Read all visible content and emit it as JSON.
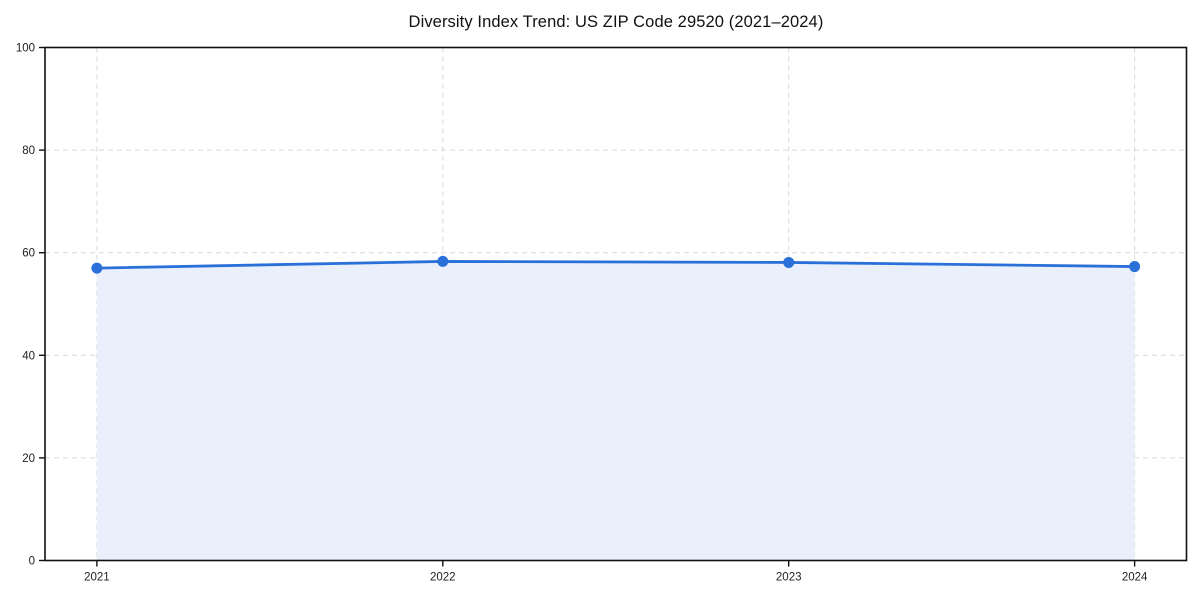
{
  "chart_data": {
    "type": "area",
    "title": "Diversity Index Trend: US ZIP Code 29520 (2021–2024)",
    "x": [
      2021,
      2022,
      2023,
      2024
    ],
    "xticklabels": [
      "2021",
      "2022",
      "2023",
      "2024"
    ],
    "series": [
      {
        "name": "Diversity Index",
        "values": [
          57.0,
          58.3,
          58.1,
          57.3
        ]
      }
    ],
    "xlabel": "",
    "ylabel": "",
    "ylim": [
      0,
      100
    ],
    "yticks": [
      0,
      20,
      40,
      60,
      80,
      100
    ],
    "grid": "dashed both axes",
    "legend_position": "none",
    "x_margin_frac": 0.05,
    "colors": {
      "line": "#2a70d9",
      "marker": "#2a70d9",
      "fill": "#e9f0fb",
      "grid": "#d9d9d9",
      "spine": "#111111",
      "tick_text": "#222222",
      "title_text": "#111111",
      "background": "#ffffff"
    }
  }
}
